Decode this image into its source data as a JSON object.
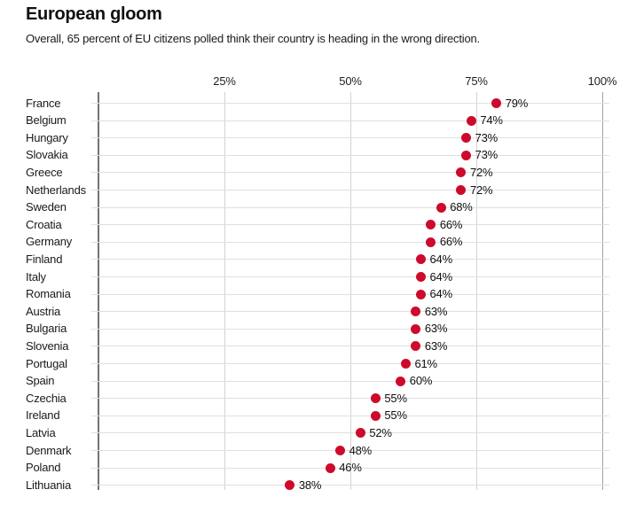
{
  "header": {
    "title": "European gloom",
    "subtitle": "Overall, 65 percent of EU citizens polled think their country is heading in the wrong direction."
  },
  "colors": {
    "dot": "#ce0a2c",
    "grid_horizontal": "#e0e0e0",
    "grid_vertical": "#d4d4d4",
    "grid_100_line": "#a3a3a3",
    "axis_zero_line": "#737373",
    "text": "#111111"
  },
  "chart_data": {
    "type": "scatter",
    "variant": "dot-plot",
    "title": "European gloom",
    "subtitle": "Overall, 65 percent of EU citizens polled think their country is heading in the wrong direction.",
    "xlabel": "",
    "ylabel": "",
    "unit": "%",
    "xlim": [
      0,
      100
    ],
    "grid": true,
    "legend": false,
    "x_ticks": [
      {
        "label": "25%",
        "value": 25
      },
      {
        "label": "50%",
        "value": 50
      },
      {
        "label": "75%",
        "value": 75
      },
      {
        "label": "100%",
        "value": 100
      }
    ],
    "categories": [
      "France",
      "Belgium",
      "Hungary",
      "Slovakia",
      "Greece",
      "Netherlands",
      "Sweden",
      "Croatia",
      "Germany",
      "Finland",
      "Italy",
      "Romania",
      "Austria",
      "Bulgaria",
      "Slovenia",
      "Portugal",
      "Spain",
      "Czechia",
      "Ireland",
      "Latvia",
      "Denmark",
      "Poland",
      "Lithuania"
    ],
    "values": [
      79,
      74,
      73,
      73,
      72,
      72,
      68,
      66,
      66,
      64,
      64,
      64,
      63,
      63,
      63,
      61,
      60,
      55,
      55,
      52,
      48,
      46,
      38
    ],
    "value_labels": [
      "79%",
      "74%",
      "73%",
      "73%",
      "72%",
      "72%",
      "68%",
      "66%",
      "66%",
      "64%",
      "64%",
      "64%",
      "63%",
      "63%",
      "63%",
      "61%",
      "60%",
      "55%",
      "55%",
      "52%",
      "48%",
      "46%",
      "38%"
    ]
  }
}
